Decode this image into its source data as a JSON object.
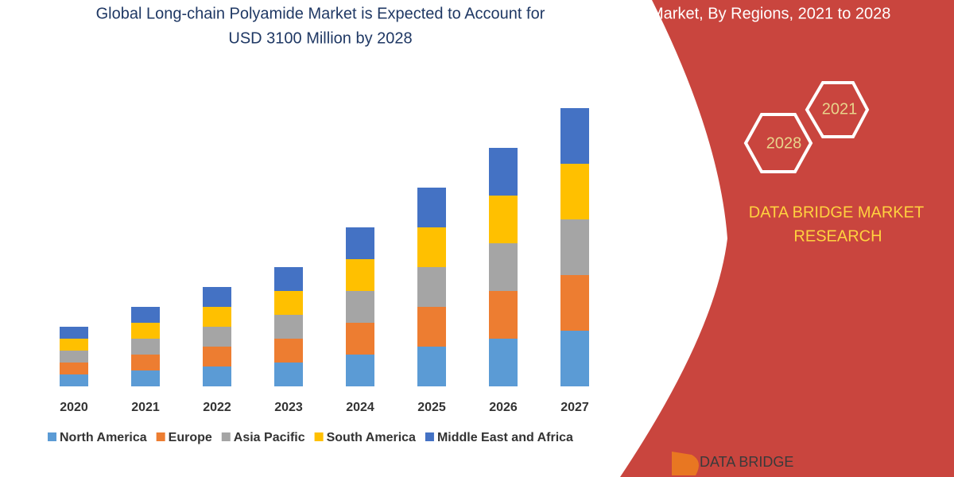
{
  "chart_data": {
    "type": "stacked_bar",
    "title": [
      "Global Long-chain Polyamide Market is Expected to Account for",
      "USD 3100 Million by 2028"
    ],
    "categories": [
      "2020",
      "2021",
      "2022",
      "2023",
      "2024",
      "2025",
      "2026",
      "2027"
    ],
    "series": [
      {
        "name": "North America",
        "color": "#5b9bd5",
        "values": [
          15,
          20,
          25,
          30,
          40,
          50,
          60,
          70
        ]
      },
      {
        "name": "Europe",
        "color": "#ed7d31",
        "values": [
          15,
          20,
          25,
          30,
          40,
          50,
          60,
          70
        ]
      },
      {
        "name": "Asia Pacific",
        "color": "#a5a5a5",
        "values": [
          15,
          20,
          25,
          30,
          40,
          50,
          60,
          70
        ]
      },
      {
        "name": "South America",
        "color": "#ffc000",
        "values": [
          15,
          20,
          25,
          30,
          40,
          50,
          60,
          70
        ]
      },
      {
        "name": "Middle East and Africa",
        "color": "#4472c4",
        "values": [
          15,
          20,
          25,
          30,
          40,
          50,
          60,
          70
        ]
      }
    ]
  },
  "panel": {
    "heading": "Market, By Regions, 2021 to 2028",
    "hex_top": "2021",
    "hex_bottom": "2028",
    "brand": [
      "DATA BRIDGE MARKET",
      "RESEARCH"
    ],
    "logo": "DATA BRIDGE"
  }
}
